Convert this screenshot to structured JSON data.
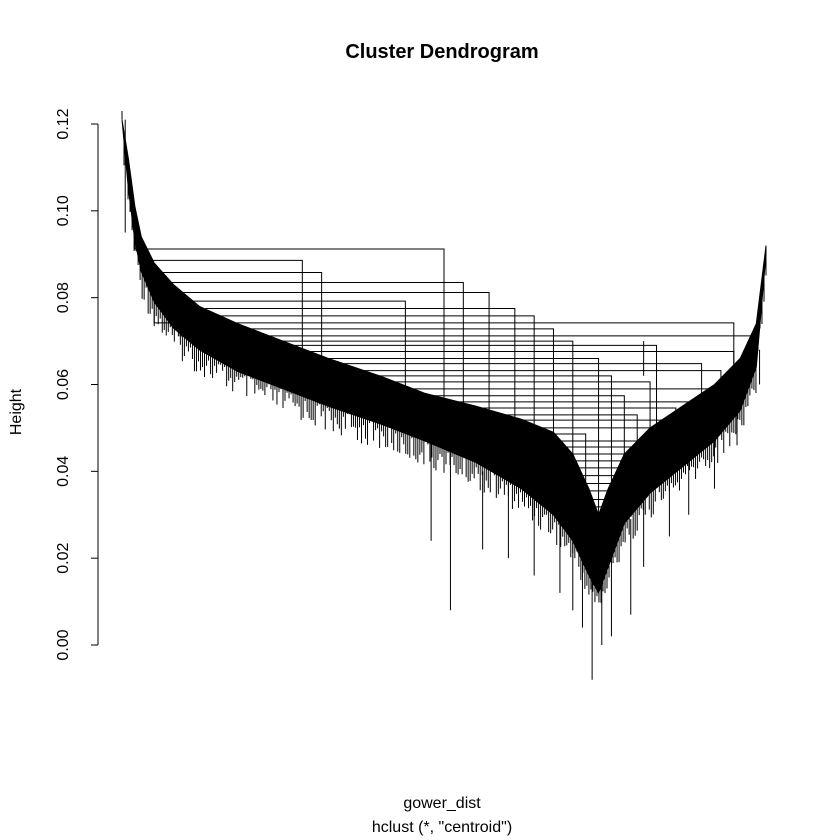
{
  "chart_data": {
    "type": "dendrogram",
    "title": "Cluster Dendrogram",
    "ylabel": "Height",
    "xlabel": "gower_dist",
    "sublabel": "hclust (*, \"centroid\")",
    "ylim": [
      0,
      0.12
    ],
    "y_ticks": [
      {
        "value": 0.0,
        "label": "0.00"
      },
      {
        "value": 0.02,
        "label": "0.02"
      },
      {
        "value": 0.04,
        "label": "0.04"
      },
      {
        "value": 0.06,
        "label": "0.06"
      },
      {
        "value": 0.08,
        "label": "0.08"
      },
      {
        "value": 0.1,
        "label": "0.10"
      },
      {
        "value": 0.12,
        "label": "0.12"
      }
    ],
    "lower_envelope": [
      [
        0.0,
        0.121
      ],
      [
        0.01,
        0.105
      ],
      [
        0.02,
        0.093
      ],
      [
        0.03,
        0.086
      ],
      [
        0.05,
        0.079
      ],
      [
        0.08,
        0.073
      ],
      [
        0.12,
        0.068
      ],
      [
        0.18,
        0.063
      ],
      [
        0.25,
        0.059
      ],
      [
        0.32,
        0.055
      ],
      [
        0.4,
        0.051
      ],
      [
        0.47,
        0.047
      ],
      [
        0.55,
        0.042
      ],
      [
        0.62,
        0.036
      ],
      [
        0.67,
        0.03
      ],
      [
        0.7,
        0.024
      ],
      [
        0.725,
        0.016
      ],
      [
        0.74,
        0.012
      ],
      [
        0.755,
        0.018
      ],
      [
        0.78,
        0.028
      ],
      [
        0.82,
        0.035
      ],
      [
        0.87,
        0.041
      ],
      [
        0.92,
        0.047
      ],
      [
        0.96,
        0.054
      ],
      [
        0.985,
        0.064
      ],
      [
        1.0,
        0.09
      ]
    ],
    "upper_envelope": [
      [
        0.0,
        0.121
      ],
      [
        0.01,
        0.112
      ],
      [
        0.02,
        0.101
      ],
      [
        0.03,
        0.094
      ],
      [
        0.05,
        0.088
      ],
      [
        0.08,
        0.083
      ],
      [
        0.12,
        0.078
      ],
      [
        0.18,
        0.074
      ],
      [
        0.25,
        0.07
      ],
      [
        0.32,
        0.066
      ],
      [
        0.4,
        0.062
      ],
      [
        0.47,
        0.058
      ],
      [
        0.55,
        0.055
      ],
      [
        0.62,
        0.052
      ],
      [
        0.67,
        0.049
      ],
      [
        0.7,
        0.044
      ],
      [
        0.725,
        0.036
      ],
      [
        0.74,
        0.03
      ],
      [
        0.755,
        0.036
      ],
      [
        0.78,
        0.044
      ],
      [
        0.82,
        0.05
      ],
      [
        0.87,
        0.055
      ],
      [
        0.92,
        0.06
      ],
      [
        0.96,
        0.066
      ],
      [
        0.985,
        0.074
      ],
      [
        1.0,
        0.092
      ]
    ],
    "merges": [
      {
        "h": 0.0912,
        "x1": 0.02,
        "x2": 0.5
      },
      {
        "h": 0.0886,
        "x1": 0.03,
        "x2": 0.28
      },
      {
        "h": 0.0858,
        "x1": 0.05,
        "x2": 0.31
      },
      {
        "h": 0.0835,
        "x1": 0.07,
        "x2": 0.53
      },
      {
        "h": 0.0812,
        "x1": 0.09,
        "x2": 0.57
      },
      {
        "h": 0.0792,
        "x1": 0.11,
        "x2": 0.44
      },
      {
        "h": 0.0775,
        "x1": 0.13,
        "x2": 0.61
      },
      {
        "h": 0.0758,
        "x1": 0.15,
        "x2": 0.64
      },
      {
        "h": 0.0742,
        "x1": 0.05,
        "x2": 0.95
      },
      {
        "h": 0.0728,
        "x1": 0.17,
        "x2": 0.67
      },
      {
        "h": 0.0712,
        "x1": 0.09,
        "x2": 0.98
      },
      {
        "h": 0.07,
        "x1": 0.2,
        "x2": 0.7
      },
      {
        "h": 0.069,
        "x1": 0.12,
        "x2": 0.83
      },
      {
        "h": 0.0676,
        "x1": 0.22,
        "x2": 0.95
      },
      {
        "h": 0.066,
        "x1": 0.26,
        "x2": 0.74
      },
      {
        "h": 0.0648,
        "x1": 0.19,
        "x2": 0.9
      },
      {
        "h": 0.0632,
        "x1": 0.29,
        "x2": 0.93
      },
      {
        "h": 0.062,
        "x1": 0.33,
        "x2": 0.76
      },
      {
        "h": 0.0606,
        "x1": 0.28,
        "x2": 0.82
      },
      {
        "h": 0.059,
        "x1": 0.37,
        "x2": 0.94
      },
      {
        "h": 0.0574,
        "x1": 0.3,
        "x2": 0.78
      },
      {
        "h": 0.056,
        "x1": 0.42,
        "x2": 0.88
      },
      {
        "h": 0.0546,
        "x1": 0.47,
        "x2": 0.86
      },
      {
        "h": 0.053,
        "x1": 0.36,
        "x2": 0.8
      },
      {
        "h": 0.0518,
        "x1": 0.5,
        "x2": 0.9
      },
      {
        "h": 0.05,
        "x1": 0.55,
        "x2": 0.84
      },
      {
        "h": 0.0486,
        "x1": 0.45,
        "x2": 0.72
      },
      {
        "h": 0.047,
        "x1": 0.58,
        "x2": 0.86
      },
      {
        "h": 0.0456,
        "x1": 0.61,
        "x2": 0.81
      },
      {
        "h": 0.044,
        "x1": 0.64,
        "x2": 0.8
      },
      {
        "h": 0.0424,
        "x1": 0.67,
        "x2": 0.79
      },
      {
        "h": 0.0408,
        "x1": 0.69,
        "x2": 0.78
      },
      {
        "h": 0.039,
        "x1": 0.7,
        "x2": 0.77
      },
      {
        "h": 0.0372,
        "x1": 0.71,
        "x2": 0.775
      },
      {
        "h": 0.0355,
        "x1": 0.715,
        "x2": 0.77
      },
      {
        "h": 0.0335,
        "x1": 0.72,
        "x2": 0.765
      },
      {
        "h": 0.0318,
        "x1": 0.725,
        "x2": 0.76
      },
      {
        "h": 0.03,
        "x1": 0.728,
        "x2": 0.758
      }
    ],
    "leaf_stubs": [
      {
        "x": 0.005,
        "top": 0.121,
        "bottom": 0.095
      },
      {
        "x": 0.48,
        "top": 0.047,
        "bottom": 0.024
      },
      {
        "x": 0.51,
        "top": 0.047,
        "bottom": 0.008
      },
      {
        "x": 0.56,
        "top": 0.04,
        "bottom": 0.022
      },
      {
        "x": 0.6,
        "top": 0.038,
        "bottom": 0.02
      },
      {
        "x": 0.64,
        "top": 0.034,
        "bottom": 0.016
      },
      {
        "x": 0.68,
        "top": 0.028,
        "bottom": 0.012
      },
      {
        "x": 0.7,
        "top": 0.024,
        "bottom": 0.008
      },
      {
        "x": 0.715,
        "top": 0.02,
        "bottom": 0.004
      },
      {
        "x": 0.73,
        "top": 0.015,
        "bottom": -0.008
      },
      {
        "x": 0.745,
        "top": 0.014,
        "bottom": 0.0
      },
      {
        "x": 0.76,
        "top": 0.02,
        "bottom": 0.002
      },
      {
        "x": 0.79,
        "top": 0.029,
        "bottom": 0.007
      },
      {
        "x": 0.81,
        "top": 0.034,
        "bottom": 0.018
      },
      {
        "x": 0.85,
        "top": 0.039,
        "bottom": 0.025
      },
      {
        "x": 0.88,
        "top": 0.043,
        "bottom": 0.03
      },
      {
        "x": 0.92,
        "top": 0.048,
        "bottom": 0.036
      },
      {
        "x": 0.955,
        "top": 0.054,
        "bottom": 0.046
      },
      {
        "x": 0.99,
        "top": 0.068,
        "bottom": 0.06
      },
      {
        "x": 0.81,
        "top": 0.07,
        "bottom": 0.062
      }
    ]
  }
}
